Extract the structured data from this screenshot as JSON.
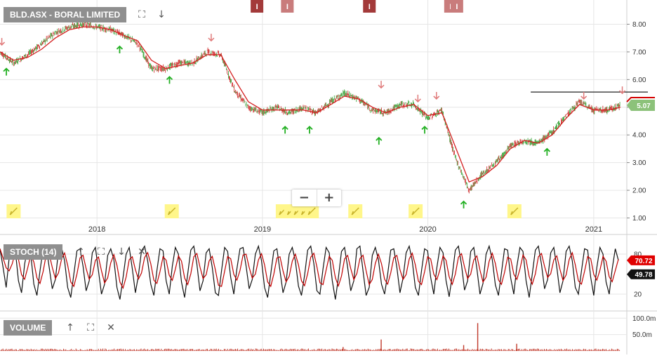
{
  "price_panel": {
    "label": "BLD.ASX - BORAL LIMITED"
  },
  "stoch_panel": {
    "label": "STOCH (14)"
  },
  "volume_panel": {
    "label": "VOLUME"
  },
  "tools": {
    "expand": "expand-icon",
    "down": "arrow-down-icon",
    "up": "arrow-up-icon",
    "close": "close-icon"
  },
  "zoom": {
    "minus": "−",
    "plus": "+"
  },
  "event_markers": [
    {
      "label": "I",
      "x": "2018-12-20",
      "color": "#a33a3a"
    },
    {
      "label": "I",
      "x": "2019-02-25",
      "color": "#c97c7c"
    },
    {
      "label": "I",
      "x": "2019-08-25",
      "color": "#a33a3a"
    },
    {
      "label": "I",
      "x": "2020-02-20",
      "color": "#c97c7c"
    },
    {
      "label": "I",
      "x": "2020-03-05",
      "color": "#c97c7c"
    }
  ],
  "note_markers": [
    "2017-07-01",
    "2018-06-15",
    "2019-02-15",
    "2019-03-05",
    "2019-03-20",
    "2019-04-05",
    "2019-04-20",
    "2019-07-25",
    "2019-12-05",
    "2020-07-10"
  ],
  "colors": {
    "up": "#2a9d2a",
    "down": "#cc2222",
    "ma": "#d42020",
    "stoch_d": "#c00000",
    "grid": "#e6e6e6",
    "signal_down": "#e07a7a",
    "signal_up": "#23b023",
    "volume": "#c0392b"
  },
  "chart_data": [
    {
      "type": "line",
      "name": "price",
      "x_ticks": [
        "2018",
        "2019",
        "2020",
        "2021"
      ],
      "x_tick_dates": [
        "2018-01-01",
        "2019-01-01",
        "2020-01-01",
        "2021-01-01"
      ],
      "x_range": [
        "2017-06-01",
        "2021-03-15"
      ],
      "y_ticks": [
        "1.00",
        "2.00",
        "3.00",
        "4.00",
        "5.00",
        "6.00",
        "7.00",
        "8.00"
      ],
      "ylim": [
        1.0,
        8.7
      ],
      "grid": true,
      "x": [
        "2017-06-01",
        "2017-07-01",
        "2017-08-01",
        "2017-09-01",
        "2017-10-01",
        "2017-11-01",
        "2017-12-01",
        "2018-01-01",
        "2018-02-01",
        "2018-03-01",
        "2018-04-01",
        "2018-05-01",
        "2018-06-01",
        "2018-07-01",
        "2018-08-01",
        "2018-09-01",
        "2018-10-01",
        "2018-11-01",
        "2018-12-01",
        "2019-01-01",
        "2019-02-01",
        "2019-03-01",
        "2019-04-01",
        "2019-05-01",
        "2019-06-01",
        "2019-07-01",
        "2019-08-01",
        "2019-09-01",
        "2019-10-01",
        "2019-11-01",
        "2019-12-01",
        "2020-01-01",
        "2020-02-01",
        "2020-03-01",
        "2020-04-01",
        "2020-05-01",
        "2020-06-01",
        "2020-07-01",
        "2020-08-01",
        "2020-09-01",
        "2020-10-01",
        "2020-11-01",
        "2020-12-01",
        "2021-01-01",
        "2021-02-01",
        "2021-03-01"
      ],
      "close": [
        7.0,
        6.6,
        6.9,
        7.3,
        7.7,
        7.9,
        8.0,
        7.9,
        7.8,
        7.6,
        7.3,
        6.4,
        6.4,
        6.6,
        6.6,
        7.0,
        6.9,
        5.6,
        5.0,
        4.8,
        5.0,
        4.8,
        5.0,
        4.8,
        5.2,
        5.5,
        5.3,
        4.9,
        4.8,
        5.1,
        5.1,
        4.6,
        4.9,
        3.2,
        2.0,
        2.6,
        3.0,
        3.6,
        3.8,
        3.7,
        4.1,
        4.7,
        5.2,
        4.9,
        4.9,
        5.07
      ],
      "ma": [
        7.0,
        6.7,
        6.8,
        7.1,
        7.5,
        7.8,
        7.9,
        7.9,
        7.8,
        7.6,
        7.4,
        6.7,
        6.4,
        6.5,
        6.6,
        6.9,
        6.9,
        6.0,
        5.2,
        4.9,
        4.9,
        4.9,
        4.9,
        4.8,
        5.1,
        5.4,
        5.3,
        5.0,
        4.8,
        5.0,
        5.1,
        4.7,
        4.8,
        3.6,
        2.3,
        2.5,
        2.9,
        3.5,
        3.8,
        3.7,
        4.0,
        4.6,
        5.1,
        4.9,
        4.9,
        5.0
      ],
      "resistance": {
        "value": 5.55,
        "from": "2020-08-15",
        "to": "2021-03-15"
      },
      "last_price": "5.07",
      "sell_signals": [
        {
          "x": "2017-06-05",
          "y": 7.25
        },
        {
          "x": "2018-09-10",
          "y": 7.4
        },
        {
          "x": "2019-09-20",
          "y": 5.7
        },
        {
          "x": "2019-12-10",
          "y": 5.2
        },
        {
          "x": "2020-01-20",
          "y": 5.3
        },
        {
          "x": "2020-12-10",
          "y": 5.3
        },
        {
          "x": "2021-03-05",
          "y": 5.5
        }
      ],
      "buy_signals": [
        {
          "x": "2017-06-15",
          "y": 6.4
        },
        {
          "x": "2018-02-20",
          "y": 7.2
        },
        {
          "x": "2018-06-10",
          "y": 6.1
        },
        {
          "x": "2019-02-20",
          "y": 4.3
        },
        {
          "x": "2019-04-15",
          "y": 4.3
        },
        {
          "x": "2019-09-15",
          "y": 3.9
        },
        {
          "x": "2019-12-25",
          "y": 4.3
        },
        {
          "x": "2020-03-20",
          "y": 1.6
        },
        {
          "x": "2020-09-20",
          "y": 3.5
        }
      ]
    },
    {
      "type": "line",
      "name": "stochastic",
      "y_ticks": [
        "20",
        "80"
      ],
      "ylim": [
        0,
        100
      ],
      "current_k": "70.72",
      "current_d": "49.78",
      "samples_per_year": 52,
      "k": [
        88,
        60,
        30,
        75,
        92,
        85,
        40,
        22,
        65,
        90,
        80,
        35,
        18,
        55,
        88,
        92,
        60,
        28,
        42,
        85,
        90,
        70,
        30,
        15,
        50,
        85,
        88,
        62,
        25,
        40,
        82,
        90,
        55,
        20,
        35,
        78,
        88,
        72,
        30,
        12,
        45,
        80,
        90,
        58,
        22,
        48,
        85,
        92,
        70,
        35,
        18,
        55,
        88,
        85,
        40,
        20,
        62,
        90,
        80,
        38,
        15,
        50,
        86,
        92,
        65,
        25,
        40,
        82,
        88,
        60,
        22,
        18,
        55,
        90,
        84,
        45,
        20,
        58,
        88,
        90,
        62,
        28,
        42,
        80,
        92,
        70,
        30,
        15,
        50,
        85,
        88,
        55,
        22,
        38,
        80,
        90,
        70,
        32,
        18,
        48,
        86,
        92,
        66,
        25,
        20,
        58,
        90,
        82,
        40,
        12,
        45,
        84,
        90,
        60,
        25,
        40,
        88,
        92,
        55,
        18,
        30,
        78,
        90,
        72,
        35,
        20,
        50,
        86,
        88,
        60,
        22,
        44,
        82,
        92,
        70,
        30,
        18,
        55,
        88,
        85,
        45,
        20,
        60,
        90,
        82,
        40,
        16,
        48,
        86,
        92,
        64,
        26,
        40,
        84,
        90,
        58,
        20,
        36,
        80,
        92,
        72,
        34,
        18,
        52,
        88,
        86,
        44,
        20,
        62,
        90,
        84,
        40,
        15,
        50,
        86,
        92,
        65,
        28,
        42,
        82,
        90,
        60,
        22,
        40,
        84,
        92,
        70,
        30,
        20,
        55,
        88,
        86,
        45,
        18,
        60,
        90,
        80,
        38,
        20,
        58,
        88,
        70.72
      ]
    },
    {
      "type": "bar",
      "name": "volume",
      "y_ticks": [
        "50.0m",
        "100.0m"
      ],
      "ylim": [
        0,
        120
      ],
      "unit": "m",
      "spikes": [
        {
          "x": "2019-09-20",
          "value": 35
        },
        {
          "x": "2020-04-20",
          "value": 85
        },
        {
          "x": "2020-07-15",
          "value": 22
        },
        {
          "x": "2020-03-20",
          "value": 18
        },
        {
          "x": "2019-06-28",
          "value": 12
        }
      ]
    }
  ]
}
